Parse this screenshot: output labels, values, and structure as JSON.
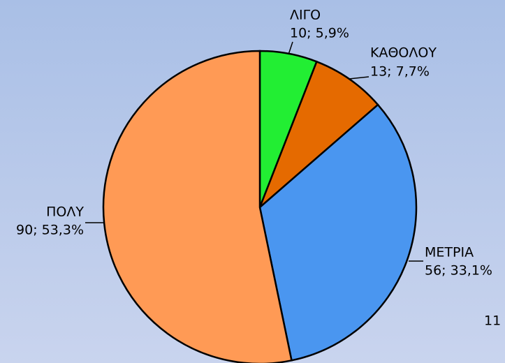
{
  "chart_data": {
    "type": "pie",
    "categories": [
      "ΛΙΓΟ",
      "ΚΑΘΟΛΟΥ",
      "ΜΕΤΡΙΑ",
      "ΠΟΛΥ"
    ],
    "values": [
      10,
      13,
      56,
      90
    ],
    "value_labels": [
      "10; 5,9%",
      "13; 7,7%",
      "56; 33,1%",
      "90; 53,3%"
    ],
    "colors": [
      "#22ee33",
      "#e56a00",
      "#4a96f0",
      "#ff9a55"
    ]
  },
  "page_number": "11"
}
